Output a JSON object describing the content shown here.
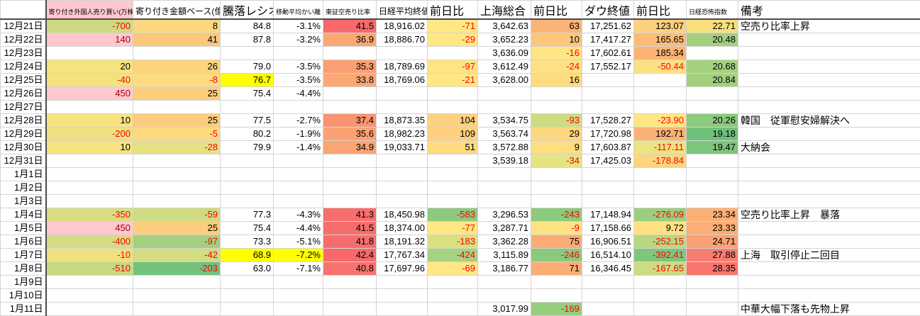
{
  "colors": {
    "negative_text": "#FF0000",
    "bad_text": "#9C0006",
    "bad_fill": "#FFC7CE",
    "manual_highlight": "#FFFF00",
    "scale_red": "#F8696B",
    "scale_yellow": "#FFEB84",
    "scale_green": "#63BE7B",
    "grid_line": "#d4d4d4"
  },
  "table": {
    "headers": [
      "",
      "寄り付き外国人売り買い(万株)",
      "寄り付き金額ベース(億)",
      "騰落レシオ",
      "移動平均かい離",
      "東証空売り比率",
      "日経平均終値",
      "前日比",
      "上海総合",
      "前日比",
      "ダウ終値",
      "前日比",
      "日経恐怖指数",
      "備考"
    ],
    "rows": [
      {
        "date": "12月21日",
        "cells": [
          {
            "v": "-700",
            "bg": "#CDDA81",
            "fg": "neg"
          },
          {
            "v": "8",
            "bg": "#FDD77F"
          },
          {
            "v": "84.8"
          },
          {
            "v": "-3.1%"
          },
          {
            "v": "41.5",
            "bg": "#F7696B"
          },
          {
            "v": "18,916.02"
          },
          {
            "v": "-71",
            "bg": "#FFE883",
            "fg": "neg"
          },
          {
            "v": "3,642.63"
          },
          {
            "v": "63",
            "bg": "#FBB377"
          },
          {
            "v": "17,251.62"
          },
          {
            "v": "123.07",
            "bg": "#FCD17E"
          },
          {
            "v": "22.71",
            "bg": "#F8DF7E"
          },
          {
            "v": "空売り比率上昇"
          }
        ]
      },
      {
        "date": "12月22日",
        "cells": [
          {
            "v": "140",
            "bg": "#FFC7CE",
            "fg": "bad"
          },
          {
            "v": "41",
            "bg": "#FBC77A"
          },
          {
            "v": "87.8"
          },
          {
            "v": "-3.2%"
          },
          {
            "v": "36.9",
            "bg": "#FAA975"
          },
          {
            "v": "18,886.70"
          },
          {
            "v": "-29",
            "bg": "#FFE883",
            "fg": "neg"
          },
          {
            "v": "3,652.23"
          },
          {
            "v": "10",
            "bg": "#FCC77A"
          },
          {
            "v": "17,417.27"
          },
          {
            "v": "165.65",
            "bg": "#FBBC78"
          },
          {
            "v": "20.48",
            "bg": "#A3D07F"
          },
          null
        ]
      },
      {
        "date": "12月23日",
        "cells": [
          null,
          null,
          null,
          null,
          null,
          null,
          null,
          {
            "v": "3,636.09"
          },
          {
            "v": "-16",
            "bg": "#FFE583",
            "fg": "neg"
          },
          {
            "v": "17,602.61"
          },
          {
            "v": "185.34",
            "bg": "#FBB476"
          },
          null,
          null
        ]
      },
      {
        "date": "12月24日",
        "cells": [
          {
            "v": "20",
            "bg": "#F6E27F"
          },
          {
            "v": "26",
            "bg": "#FCD47E"
          },
          {
            "v": "79.0"
          },
          {
            "v": "-3.5%"
          },
          {
            "v": "35.3",
            "bg": "#FA9F73"
          },
          {
            "v": "18,789.69"
          },
          {
            "v": "-97",
            "bg": "#FFE483",
            "fg": "neg"
          },
          {
            "v": "3,612.49"
          },
          {
            "v": "-24",
            "bg": "#FFE183",
            "fg": "neg"
          },
          {
            "v": "17,552.17"
          },
          {
            "v": "-50.44",
            "bg": "#FDE081",
            "fg": "neg"
          },
          {
            "v": "20.68",
            "bg": "#A5D17F"
          },
          null
        ]
      },
      {
        "date": "12月25日",
        "cells": [
          {
            "v": "-40",
            "bg": "#F4E17F",
            "fg": "neg"
          },
          {
            "v": "-8",
            "bg": "#FDDC80",
            "fg": "neg"
          },
          {
            "v": "76.7",
            "bg": "#FFFF00"
          },
          {
            "v": "-3.5%"
          },
          {
            "v": "33.8",
            "bg": "#FBA875"
          },
          {
            "v": "18,769.06"
          },
          {
            "v": "-21",
            "bg": "#FFE883",
            "fg": "neg"
          },
          {
            "v": "3,628.00"
          },
          {
            "v": "16",
            "bg": "#FFDC80"
          },
          null,
          null,
          {
            "v": "20.84",
            "bg": "#A2D07F"
          },
          null
        ]
      },
      {
        "date": "12月26日",
        "cells": [
          {
            "v": "450",
            "bg": "#FFC7CE",
            "fg": "bad"
          },
          {
            "v": "25",
            "bg": "#FCCD7C"
          },
          {
            "v": "75.4"
          },
          {
            "v": "-4.4%"
          },
          null,
          null,
          null,
          null,
          null,
          null,
          null,
          null,
          null
        ]
      },
      {
        "date": "12月27日",
        "cells": [
          null,
          null,
          null,
          null,
          null,
          null,
          null,
          null,
          null,
          null,
          null,
          null,
          null
        ]
      },
      {
        "date": "12月28日",
        "cells": [
          {
            "v": "10",
            "bg": "#F7E380"
          },
          {
            "v": "25",
            "bg": "#FCCD7C"
          },
          {
            "v": "77.5"
          },
          {
            "v": "-2.7%"
          },
          {
            "v": "37.4",
            "bg": "#F99471"
          },
          {
            "v": "18,873.35"
          },
          {
            "v": "104",
            "bg": "#FED17F"
          },
          {
            "v": "3,534.75"
          },
          {
            "v": "-93",
            "bg": "#CFDB81",
            "fg": "neg"
          },
          {
            "v": "17,528.27"
          },
          {
            "v": "-23.90",
            "bg": "#FFE683",
            "fg": "neg"
          },
          {
            "v": "20.26",
            "bg": "#8CCA7D"
          },
          {
            "v": "韓国　従軍慰安婦解決へ"
          }
        ]
      },
      {
        "date": "12月29日",
        "cells": [
          {
            "v": "-200",
            "bg": "#EEE07E",
            "fg": "neg"
          },
          {
            "v": "-5",
            "bg": "#FDDA7F",
            "fg": "neg"
          },
          {
            "v": "80.2"
          },
          {
            "v": "-1.9%"
          },
          {
            "v": "35.6",
            "bg": "#FAA274"
          },
          {
            "v": "18,982.23"
          },
          {
            "v": "109",
            "bg": "#FED07F"
          },
          {
            "v": "3,563.74"
          },
          {
            "v": "29",
            "bg": "#FDD77F"
          },
          {
            "v": "17,720.98"
          },
          {
            "v": "192.71",
            "bg": "#FBB276"
          },
          {
            "v": "19.18",
            "bg": "#6EC17B"
          },
          null
        ]
      },
      {
        "date": "12月30日",
        "cells": [
          {
            "v": "10",
            "bg": "#F7E380"
          },
          {
            "v": "-28",
            "bg": "#E4E282",
            "fg": "neg"
          },
          {
            "v": "79.9"
          },
          {
            "v": "-1.4%"
          },
          {
            "v": "34.9",
            "bg": "#FBA474"
          },
          {
            "v": "19,033.71"
          },
          {
            "v": "51",
            "bg": "#FFDA80"
          },
          {
            "v": "3,572.88"
          },
          {
            "v": "9",
            "bg": "#FFDD81"
          },
          {
            "v": "17,603.87"
          },
          {
            "v": "-117.11",
            "bg": "#EAE482",
            "fg": "neg"
          },
          {
            "v": "19.47",
            "bg": "#7DC57C"
          },
          {
            "v": "大納会"
          }
        ]
      },
      {
        "date": "12月31日",
        "cells": [
          null,
          null,
          null,
          null,
          null,
          null,
          null,
          {
            "v": "3,539.18"
          },
          {
            "v": "-34",
            "bg": "#E6E382",
            "fg": "neg"
          },
          {
            "v": "17,425.03"
          },
          {
            "v": "-178.84",
            "bg": "#FDD57F",
            "fg": "neg"
          },
          null,
          null
        ]
      },
      {
        "date": "1月1日",
        "cells": [
          null,
          null,
          null,
          null,
          null,
          null,
          null,
          null,
          null,
          null,
          null,
          null,
          null
        ]
      },
      {
        "date": "1月2日",
        "cells": [
          null,
          null,
          null,
          null,
          null,
          null,
          null,
          null,
          null,
          null,
          null,
          null,
          null
        ]
      },
      {
        "date": "1月3日",
        "cells": [
          null,
          null,
          null,
          null,
          null,
          null,
          null,
          null,
          null,
          null,
          null,
          null,
          null
        ]
      },
      {
        "date": "1月4日",
        "cells": [
          {
            "v": "-350",
            "bg": "#D9DE81",
            "fg": "neg"
          },
          {
            "v": "-59",
            "bg": "#CEDB81",
            "fg": "neg"
          },
          {
            "v": "77.3"
          },
          {
            "v": "-4.3%"
          },
          {
            "v": "41.3",
            "bg": "#F76E6C"
          },
          {
            "v": "18,450.98"
          },
          {
            "v": "-583",
            "bg": "#8ECA7E",
            "fg": "neg"
          },
          {
            "v": "3,296.53"
          },
          {
            "v": "-243",
            "bg": "#8CCA7D",
            "fg": "neg"
          },
          {
            "v": "17,148.94"
          },
          {
            "v": "-276.09",
            "bg": "#9BCE7E",
            "fg": "neg"
          },
          {
            "v": "23.34",
            "bg": "#FBAE76"
          },
          {
            "v": "空売り比率上昇　暴落"
          }
        ]
      },
      {
        "date": "1月5日",
        "cells": [
          {
            "v": "450",
            "bg": "#FFC7CE",
            "fg": "bad"
          },
          {
            "v": "25",
            "bg": "#FCCD7C"
          },
          {
            "v": "75.4"
          },
          {
            "v": "-4.4%"
          },
          {
            "v": "41.5",
            "bg": "#F76D6C"
          },
          {
            "v": "18,374.00"
          },
          {
            "v": "-77",
            "bg": "#FFE783",
            "fg": "neg"
          },
          {
            "v": "3,287.71"
          },
          {
            "v": "-9",
            "bg": "#FFE383",
            "fg": "neg"
          },
          {
            "v": "17,158.66"
          },
          {
            "v": "9.72",
            "bg": "#FFE182"
          },
          {
            "v": "23.33",
            "bg": "#FBAE76"
          },
          null
        ]
      },
      {
        "date": "1月6日",
        "cells": [
          {
            "v": "-400",
            "bg": "#D4DD81",
            "fg": "neg"
          },
          {
            "v": "-97",
            "bg": "#A2D07F",
            "fg": "neg"
          },
          {
            "v": "73.3"
          },
          {
            "v": "-5.1%"
          },
          {
            "v": "41.8",
            "bg": "#F76C6C"
          },
          {
            "v": "18,191.32"
          },
          {
            "v": "-183",
            "bg": "#DADF81",
            "fg": "neg"
          },
          {
            "v": "3,362.28"
          },
          {
            "v": "75",
            "bg": "#FBAC76"
          },
          {
            "v": "16,906.51"
          },
          {
            "v": "-252.15",
            "bg": "#B9D780",
            "fg": "neg"
          },
          {
            "v": "24.71",
            "bg": "#FAA173"
          },
          null
        ]
      },
      {
        "date": "1月7日",
        "cells": [
          {
            "v": "-10",
            "bg": "#F0E07F",
            "fg": "neg"
          },
          {
            "v": "-42",
            "bg": "#D2DC81",
            "fg": "neg"
          },
          {
            "v": "68.9",
            "bg": "#FFFF00"
          },
          {
            "v": "-7.2%",
            "bg": "#FFFF00"
          },
          {
            "v": "42.4",
            "bg": "#F8696B"
          },
          {
            "v": "17,767.34"
          },
          {
            "v": "-424",
            "bg": "#A7D27F",
            "fg": "neg"
          },
          {
            "v": "3,115.89"
          },
          {
            "v": "-246",
            "bg": "#8BC97D",
            "fg": "neg"
          },
          {
            "v": "16,514.10"
          },
          {
            "v": "-392.41",
            "bg": "#7FC67D",
            "fg": "neg"
          },
          {
            "v": "27.88",
            "bg": "#F87E70"
          },
          {
            "v": "上海　取引停止二回目"
          }
        ]
      },
      {
        "date": "1月8日",
        "cells": [
          {
            "v": "-510",
            "bg": "#C7D980",
            "fg": "neg"
          },
          {
            "v": "-203",
            "bg": "#72C27C",
            "fg": "neg"
          },
          {
            "v": "63.0"
          },
          {
            "v": "-7.1%"
          },
          {
            "v": "40.8",
            "bg": "#F8736E"
          },
          {
            "v": "17,697.96"
          },
          {
            "v": "-69",
            "bg": "#FFE783",
            "fg": "neg"
          },
          {
            "v": "3,186.77"
          },
          {
            "v": "71",
            "bg": "#FBAD76"
          },
          {
            "v": "16,346.45"
          },
          {
            "v": "-167.65",
            "bg": "#CDDB81",
            "fg": "neg"
          },
          {
            "v": "28.35",
            "bg": "#F8756E"
          },
          null
        ]
      },
      {
        "date": "1月9日",
        "cells": [
          null,
          null,
          null,
          null,
          null,
          null,
          null,
          null,
          null,
          null,
          null,
          null,
          null
        ]
      },
      {
        "date": "1月10日",
        "cells": [
          null,
          null,
          null,
          null,
          null,
          null,
          null,
          null,
          null,
          null,
          null,
          null,
          null
        ]
      },
      {
        "date": "1月11日",
        "cells": [
          null,
          null,
          null,
          null,
          null,
          null,
          null,
          {
            "v": "3,017.99"
          },
          {
            "v": "-169",
            "bg": "#97CD7E",
            "fg": "neg"
          },
          null,
          null,
          null,
          {
            "v": "中華大幅下落も先物上昇"
          }
        ]
      }
    ]
  }
}
